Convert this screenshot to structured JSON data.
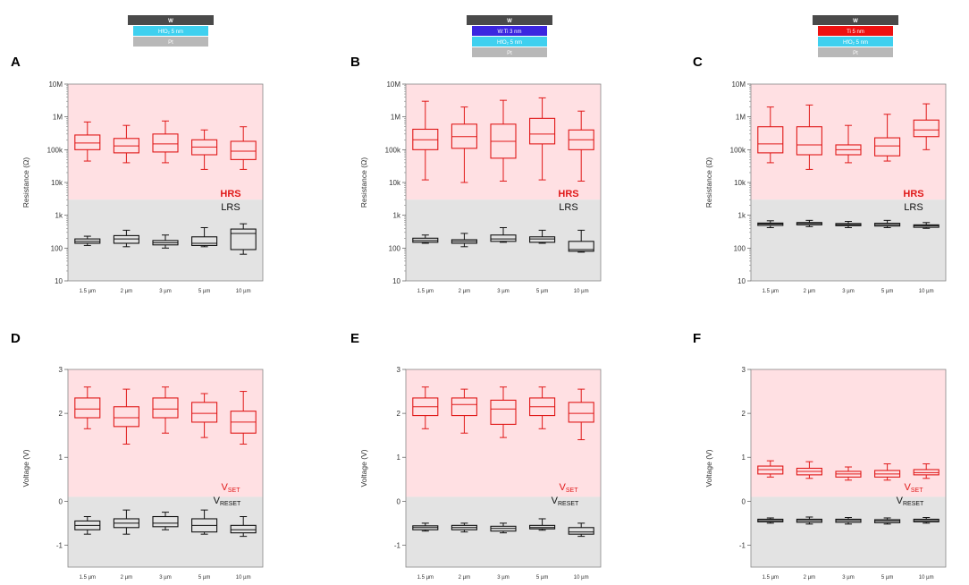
{
  "stacks": [
    {
      "name": "stack-a",
      "layers": [
        {
          "label": "W",
          "color": "#4a4a4a",
          "text": "#ffffff"
        },
        {
          "label": "HfO₂ 5 nm",
          "color": "#3fd0ef",
          "text": "#ffffff"
        },
        {
          "label": "Pt",
          "color": "#b8b8b8",
          "text": "#ffffff"
        }
      ]
    },
    {
      "name": "stack-b",
      "layers": [
        {
          "label": "W",
          "color": "#4a4a4a",
          "text": "#ffffff"
        },
        {
          "label": "W:Ti 3 nm",
          "color": "#3b26e0",
          "text": "#ffffff"
        },
        {
          "label": "HfO₂ 5 nm",
          "color": "#3fd0ef",
          "text": "#ffffff"
        },
        {
          "label": "Pt",
          "color": "#b8b8b8",
          "text": "#ffffff"
        }
      ]
    },
    {
      "name": "stack-c",
      "layers": [
        {
          "label": "W",
          "color": "#4a4a4a",
          "text": "#ffffff"
        },
        {
          "label": "Ti 5 nm",
          "color": "#ee1111",
          "text": "#ffffff"
        },
        {
          "label": "HfO₂ 5 nm",
          "color": "#3fd0ef",
          "text": "#ffffff"
        },
        {
          "label": "Pt",
          "color": "#b8b8b8",
          "text": "#ffffff"
        }
      ]
    }
  ],
  "colors": {
    "high_region": "#ffe0e3",
    "low_region": "#e3e3e3",
    "high_box": "#e01818",
    "low_box": "#111111",
    "axis": "#888888"
  },
  "chart_data": [
    {
      "panel": "A",
      "type": "box",
      "scale": "log",
      "ylabel": "Resistance (Ω)",
      "ylim": [
        10,
        10000000
      ],
      "yticks": [
        {
          "v": 10,
          "t": "10"
        },
        {
          "v": 100,
          "t": "100"
        },
        {
          "v": 1000,
          "t": "1k"
        },
        {
          "v": 10000,
          "t": "10k"
        },
        {
          "v": 100000,
          "t": "100k"
        },
        {
          "v": 1000000,
          "t": "1M"
        },
        {
          "v": 10000000,
          "t": "10M"
        }
      ],
      "boundary": 3000,
      "categories": [
        "1.5 µm",
        "2 µm",
        "3 µm",
        "5 µm",
        "10 µm"
      ],
      "high_label": "HRS",
      "low_label": "LRS",
      "high_boxes": [
        [
          45000,
          100000,
          160000,
          280000,
          700000
        ],
        [
          40000,
          80000,
          130000,
          220000,
          550000
        ],
        [
          40000,
          85000,
          150000,
          300000,
          750000
        ],
        [
          25000,
          70000,
          120000,
          200000,
          400000
        ],
        [
          25000,
          50000,
          90000,
          180000,
          500000
        ]
      ],
      "low_boxes": [
        [
          120,
          140,
          160,
          190,
          230
        ],
        [
          110,
          140,
          190,
          240,
          350
        ],
        [
          100,
          125,
          145,
          170,
          250
        ],
        [
          110,
          120,
          140,
          220,
          420
        ],
        [
          65,
          90,
          280,
          380,
          550
        ]
      ]
    },
    {
      "panel": "B",
      "type": "box",
      "scale": "log",
      "ylabel": "Resistance (Ω)",
      "ylim": [
        10,
        10000000
      ],
      "yticks": [
        {
          "v": 10,
          "t": "10"
        },
        {
          "v": 100,
          "t": "100"
        },
        {
          "v": 1000,
          "t": "1k"
        },
        {
          "v": 10000,
          "t": "10k"
        },
        {
          "v": 100000,
          "t": "100k"
        },
        {
          "v": 1000000,
          "t": "1M"
        },
        {
          "v": 10000000,
          "t": "10M"
        }
      ],
      "boundary": 3000,
      "categories": [
        "1.5 µm",
        "2 µm",
        "3 µm",
        "5 µm",
        "10 µm"
      ],
      "high_label": "HRS",
      "low_label": "LRS",
      "high_boxes": [
        [
          12000,
          100000,
          200000,
          420000,
          3000000
        ],
        [
          10000,
          110000,
          250000,
          600000,
          2000000
        ],
        [
          11000,
          55000,
          180000,
          600000,
          3200000
        ],
        [
          12000,
          150000,
          300000,
          900000,
          3800000
        ],
        [
          11000,
          100000,
          200000,
          400000,
          1500000
        ]
      ],
      "low_boxes": [
        [
          140,
          150,
          170,
          200,
          250
        ],
        [
          110,
          140,
          160,
          180,
          280
        ],
        [
          150,
          160,
          190,
          250,
          420
        ],
        [
          140,
          150,
          190,
          220,
          350
        ],
        [
          75,
          80,
          90,
          160,
          350
        ]
      ]
    },
    {
      "panel": "C",
      "type": "box",
      "scale": "log",
      "ylabel": "Resistance (Ω)",
      "ylim": [
        10,
        10000000
      ],
      "yticks": [
        {
          "v": 10,
          "t": "10"
        },
        {
          "v": 100,
          "t": "100"
        },
        {
          "v": 1000,
          "t": "1k"
        },
        {
          "v": 10000,
          "t": "10k"
        },
        {
          "v": 100000,
          "t": "100k"
        },
        {
          "v": 1000000,
          "t": "1M"
        },
        {
          "v": 10000000,
          "t": "10M"
        }
      ],
      "boundary": 3000,
      "categories": [
        "1.5 µm",
        "2 µm",
        "3 µm",
        "5 µm",
        "10 µm"
      ],
      "high_label": "HRS",
      "low_label": "LRS",
      "high_boxes": [
        [
          40000,
          80000,
          150000,
          500000,
          2000000
        ],
        [
          25000,
          70000,
          140000,
          500000,
          2300000
        ],
        [
          40000,
          70000,
          100000,
          140000,
          550000
        ],
        [
          45000,
          65000,
          130000,
          230000,
          1200000
        ],
        [
          100000,
          250000,
          400000,
          800000,
          2500000
        ]
      ],
      "low_boxes": [
        [
          420,
          490,
          540,
          580,
          680
        ],
        [
          450,
          510,
          560,
          600,
          700
        ],
        [
          420,
          480,
          520,
          560,
          650
        ],
        [
          420,
          470,
          520,
          570,
          700
        ],
        [
          400,
          430,
          480,
          510,
          600
        ]
      ]
    },
    {
      "panel": "D",
      "type": "box",
      "scale": "linear",
      "ylabel": "Voltage (V)",
      "ylim": [
        -1.5,
        3
      ],
      "yticks": [
        {
          "v": -1,
          "t": "-1"
        },
        {
          "v": 0,
          "t": "0"
        },
        {
          "v": 1,
          "t": "1"
        },
        {
          "v": 2,
          "t": "2"
        },
        {
          "v": 3,
          "t": "3"
        }
      ],
      "boundary": 0.1,
      "categories": [
        "1.5 µm",
        "2 µm",
        "3 µm",
        "5 µm",
        "10 µm"
      ],
      "high_label": "SET",
      "low_label": "RESET",
      "label_prefix": "V",
      "high_boxes": [
        [
          1.65,
          1.9,
          2.1,
          2.35,
          2.6
        ],
        [
          1.3,
          1.7,
          1.9,
          2.15,
          2.55
        ],
        [
          1.55,
          1.9,
          2.1,
          2.35,
          2.6
        ],
        [
          1.45,
          1.8,
          2.0,
          2.25,
          2.45
        ],
        [
          1.3,
          1.55,
          1.8,
          2.05,
          2.5
        ]
      ],
      "low_boxes": [
        [
          -0.75,
          -0.65,
          -0.55,
          -0.45,
          -0.35
        ],
        [
          -0.75,
          -0.6,
          -0.5,
          -0.4,
          -0.2
        ],
        [
          -0.65,
          -0.58,
          -0.5,
          -0.35,
          -0.25
        ],
        [
          -0.75,
          -0.7,
          -0.55,
          -0.4,
          -0.2
        ],
        [
          -0.8,
          -0.72,
          -0.65,
          -0.55,
          -0.35
        ]
      ]
    },
    {
      "panel": "E",
      "type": "box",
      "scale": "linear",
      "ylabel": "Voltage (V)",
      "ylim": [
        -1.5,
        3
      ],
      "yticks": [
        {
          "v": -1,
          "t": "-1"
        },
        {
          "v": 0,
          "t": "0"
        },
        {
          "v": 1,
          "t": "1"
        },
        {
          "v": 2,
          "t": "2"
        },
        {
          "v": 3,
          "t": "3"
        }
      ],
      "boundary": 0.1,
      "categories": [
        "1.5 µm",
        "2 µm",
        "3 µm",
        "5 µm",
        "10 µm"
      ],
      "high_label": "SET",
      "low_label": "RESET",
      "label_prefix": "V",
      "high_boxes": [
        [
          1.65,
          1.95,
          2.15,
          2.35,
          2.6
        ],
        [
          1.55,
          1.95,
          2.2,
          2.35,
          2.55
        ],
        [
          1.45,
          1.75,
          2.1,
          2.3,
          2.6
        ],
        [
          1.65,
          1.95,
          2.15,
          2.35,
          2.6
        ],
        [
          1.4,
          1.8,
          2.0,
          2.25,
          2.55
        ]
      ],
      "low_boxes": [
        [
          -0.68,
          -0.65,
          -0.6,
          -0.56,
          -0.5
        ],
        [
          -0.7,
          -0.65,
          -0.6,
          -0.55,
          -0.5
        ],
        [
          -0.72,
          -0.68,
          -0.62,
          -0.57,
          -0.5
        ],
        [
          -0.66,
          -0.63,
          -0.6,
          -0.55,
          -0.4
        ],
        [
          -0.8,
          -0.75,
          -0.7,
          -0.6,
          -0.5
        ]
      ]
    },
    {
      "panel": "F",
      "type": "box",
      "scale": "linear",
      "ylabel": "Voltage (V)",
      "ylim": [
        -1.5,
        3
      ],
      "yticks": [
        {
          "v": -1,
          "t": "-1"
        },
        {
          "v": 0,
          "t": "0"
        },
        {
          "v": 1,
          "t": "1"
        },
        {
          "v": 2,
          "t": "2"
        },
        {
          "v": 3,
          "t": "3"
        }
      ],
      "boundary": 0.1,
      "categories": [
        "1.5 µm",
        "2 µm",
        "3 µm",
        "5 µm",
        "10 µm"
      ],
      "high_label": "SET",
      "low_label": "RESET",
      "label_prefix": "V",
      "high_boxes": [
        [
          0.55,
          0.62,
          0.72,
          0.8,
          0.92
        ],
        [
          0.52,
          0.6,
          0.68,
          0.75,
          0.9
        ],
        [
          0.48,
          0.55,
          0.62,
          0.68,
          0.78
        ],
        [
          0.48,
          0.55,
          0.62,
          0.7,
          0.85
        ],
        [
          0.52,
          0.6,
          0.65,
          0.72,
          0.85
        ]
      ],
      "low_boxes": [
        [
          -0.5,
          -0.47,
          -0.44,
          -0.41,
          -0.38
        ],
        [
          -0.52,
          -0.48,
          -0.44,
          -0.41,
          -0.36
        ],
        [
          -0.52,
          -0.48,
          -0.44,
          -0.41,
          -0.37
        ],
        [
          -0.52,
          -0.49,
          -0.45,
          -0.42,
          -0.38
        ],
        [
          -0.5,
          -0.47,
          -0.44,
          -0.41,
          -0.37
        ]
      ]
    }
  ]
}
